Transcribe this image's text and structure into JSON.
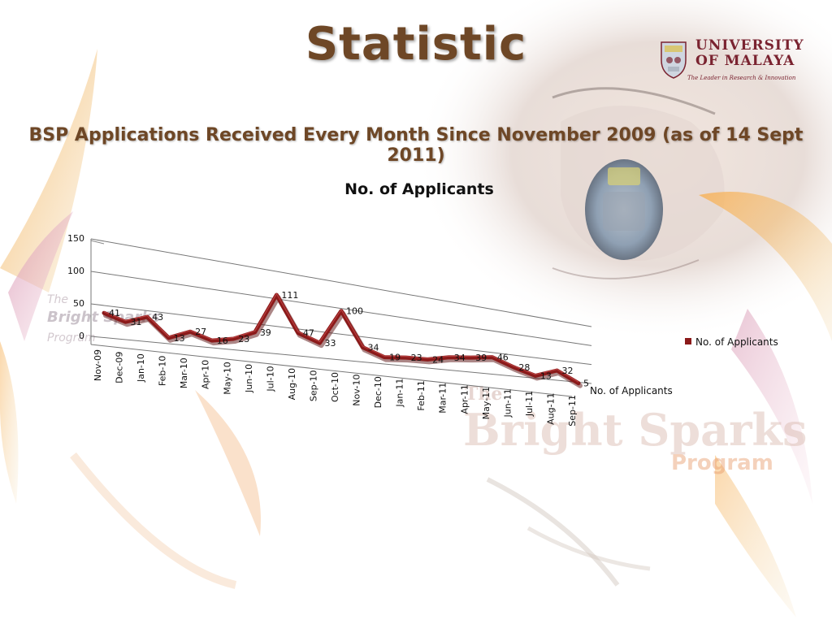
{
  "slide": {
    "title": "Statistic",
    "subtitle": "BSP Applications Received Every Month Since November 2009 (as of 14 Sept 2011)"
  },
  "logo": {
    "name_line1": "UNIVERSITY",
    "name_line2": "OF MALAYA",
    "tagline": "The Leader in Research & Innovation"
  },
  "background": {
    "watermark_line1": "The",
    "watermark_line2": "Bright Sparks",
    "watermark_line3": "Program"
  },
  "colors": {
    "title": "#6e4726",
    "series": "#8b1a1a",
    "logo": "#7a2330"
  },
  "chart_data": {
    "type": "line",
    "title": "No. of Applicants",
    "categories": [
      "Nov-09",
      "Dec-09",
      "Jan-10",
      "Feb-10",
      "Mar-10",
      "Apr-10",
      "May-10",
      "Jun-10",
      "Jul-10",
      "Aug-10",
      "Sep-10",
      "Oct-10",
      "Nov-10",
      "Dec-10",
      "Jan-11",
      "Feb-11",
      "Mar-11",
      "Apr-11",
      "May-11",
      "Jun-11",
      "Jul-11",
      "Aug-11",
      "Sep-11"
    ],
    "series": [
      {
        "name": "No. of Applicants",
        "values": [
          41,
          31,
          43,
          13,
          27,
          16,
          23,
          39,
          111,
          47,
          33,
          100,
          34,
          19,
          23,
          24,
          34,
          39,
          46,
          28,
          13,
          32,
          5
        ]
      }
    ],
    "y_ticks": [
      0,
      50,
      100,
      150
    ],
    "ylim": [
      0,
      150
    ],
    "depth_axis_label": "No. of Applicants",
    "legend": {
      "position": "right",
      "entry": "No. of Applicants"
    },
    "grid": true,
    "data_labels": true
  }
}
